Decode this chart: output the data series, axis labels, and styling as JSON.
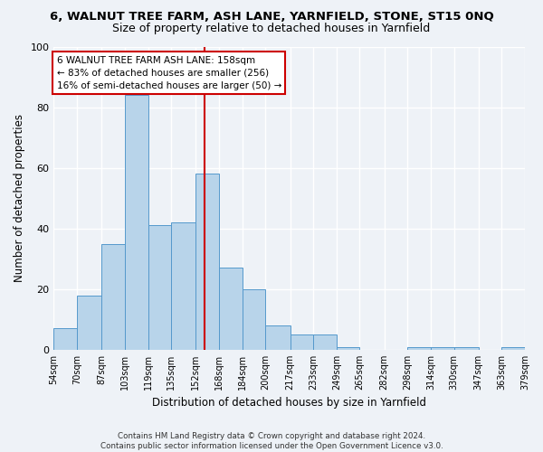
{
  "title": "6, WALNUT TREE FARM, ASH LANE, YARNFIELD, STONE, ST15 0NQ",
  "subtitle": "Size of property relative to detached houses in Yarnfield",
  "xlabel": "Distribution of detached houses by size in Yarnfield",
  "ylabel": "Number of detached properties",
  "bin_edges": [
    54,
    70,
    87,
    103,
    119,
    135,
    152,
    168,
    184,
    200,
    217,
    233,
    249,
    265,
    282,
    298,
    314,
    330,
    347,
    363,
    379
  ],
  "bin_labels": [
    "54sqm",
    "70sqm",
    "87sqm",
    "103sqm",
    "119sqm",
    "135sqm",
    "152sqm",
    "168sqm",
    "184sqm",
    "200sqm",
    "217sqm",
    "233sqm",
    "249sqm",
    "265sqm",
    "282sqm",
    "298sqm",
    "314sqm",
    "330sqm",
    "347sqm",
    "363sqm",
    "379sqm"
  ],
  "counts": [
    7,
    18,
    35,
    84,
    41,
    42,
    58,
    27,
    20,
    8,
    5,
    5,
    1,
    0,
    0,
    1,
    1,
    1,
    0,
    1,
    0
  ],
  "bar_color": "#b8d4ea",
  "bar_edge_color": "#5599cc",
  "vline_x": 158,
  "vline_color": "#cc0000",
  "annotation_title": "6 WALNUT TREE FARM ASH LANE: 158sqm",
  "annotation_line1": "← 83% of detached houses are smaller (256)",
  "annotation_line2": "16% of semi-detached houses are larger (50) →",
  "annotation_box_color": "#ffffff",
  "annotation_box_edge": "#cc0000",
  "footer_line1": "Contains HM Land Registry data © Crown copyright and database right 2024.",
  "footer_line2": "Contains public sector information licensed under the Open Government Licence v3.0.",
  "ylim": [
    0,
    100
  ],
  "background_color": "#eef2f7"
}
